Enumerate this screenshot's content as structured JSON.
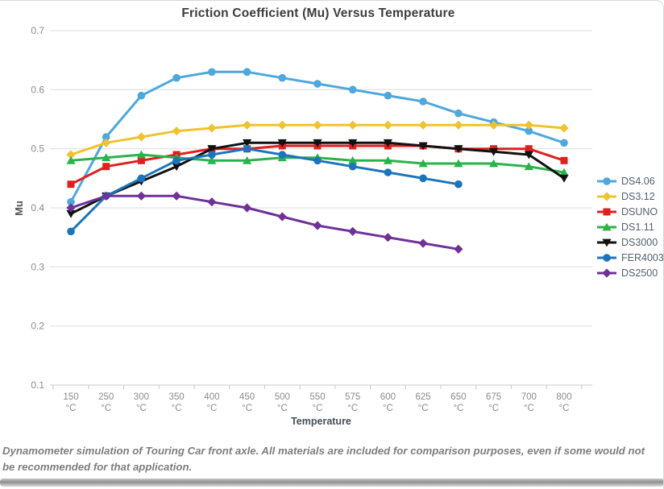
{
  "page": {
    "caption": "Dynamometer simulation of Touring Car front axle. All materials are included for comparison purposes, even if some would not be recommended for that application."
  },
  "chart_data": {
    "type": "line",
    "title": "Friction Coefficient (Mu) Versus Temperature",
    "xlabel": "Temperature",
    "ylabel": "Mu",
    "x_unit": "°C",
    "categories": [
      "150",
      "250",
      "300",
      "350",
      "400",
      "450",
      "500",
      "550",
      "575",
      "600",
      "625",
      "650",
      "675",
      "700",
      "800"
    ],
    "ylim": [
      0.1,
      0.7
    ],
    "y_ticks": [
      0.7,
      0.6,
      0.5,
      0.4,
      0.3,
      0.2,
      0.1
    ],
    "grid": true,
    "legend_position": "right",
    "colors": {
      "grid": "#dcdcdc",
      "axis": "#c9c9c9",
      "tick_label": "#8b8b8b"
    },
    "series": [
      {
        "name": "DS4.06",
        "color": "#4FA7DC",
        "marker": "circle",
        "values": [
          0.41,
          0.52,
          0.59,
          0.62,
          0.63,
          0.63,
          0.62,
          0.61,
          0.6,
          0.59,
          0.58,
          0.56,
          0.545,
          0.53,
          0.51
        ]
      },
      {
        "name": "DS3.12",
        "color": "#EFC32F",
        "marker": "diamond",
        "values": [
          0.49,
          0.51,
          0.52,
          0.53,
          0.535,
          0.54,
          0.54,
          0.54,
          0.54,
          0.54,
          0.54,
          0.54,
          0.54,
          0.54,
          0.535
        ]
      },
      {
        "name": "DSUNO",
        "color": "#DF2020",
        "marker": "square",
        "values": [
          0.44,
          0.47,
          0.48,
          0.49,
          0.5,
          0.5,
          0.505,
          0.505,
          0.505,
          0.505,
          0.505,
          0.5,
          0.5,
          0.5,
          0.48
        ]
      },
      {
        "name": "DS1.11",
        "color": "#2BB34B",
        "marker": "triangle-up",
        "values": [
          0.48,
          0.485,
          0.49,
          0.485,
          0.48,
          0.48,
          0.485,
          0.485,
          0.48,
          0.48,
          0.475,
          0.475,
          0.475,
          0.47,
          0.46
        ]
      },
      {
        "name": "DS3000",
        "color": "#111111",
        "marker": "triangle-down",
        "values": [
          0.39,
          0.42,
          0.445,
          0.47,
          0.5,
          0.51,
          0.51,
          0.51,
          0.51,
          0.51,
          0.505,
          0.5,
          0.495,
          0.49,
          0.45
        ]
      },
      {
        "name": "FER4003",
        "color": "#1C75BC",
        "marker": "circle",
        "values": [
          0.36,
          0.42,
          0.45,
          0.48,
          0.49,
          0.5,
          0.49,
          0.48,
          0.47,
          0.46,
          0.45,
          0.44,
          null,
          null,
          null
        ]
      },
      {
        "name": "DS2500",
        "color": "#6F3198",
        "marker": "diamond",
        "values": [
          0.4,
          0.42,
          0.42,
          0.42,
          0.41,
          0.4,
          0.385,
          0.37,
          0.36,
          0.35,
          0.34,
          0.33,
          null,
          null,
          null
        ]
      }
    ]
  }
}
